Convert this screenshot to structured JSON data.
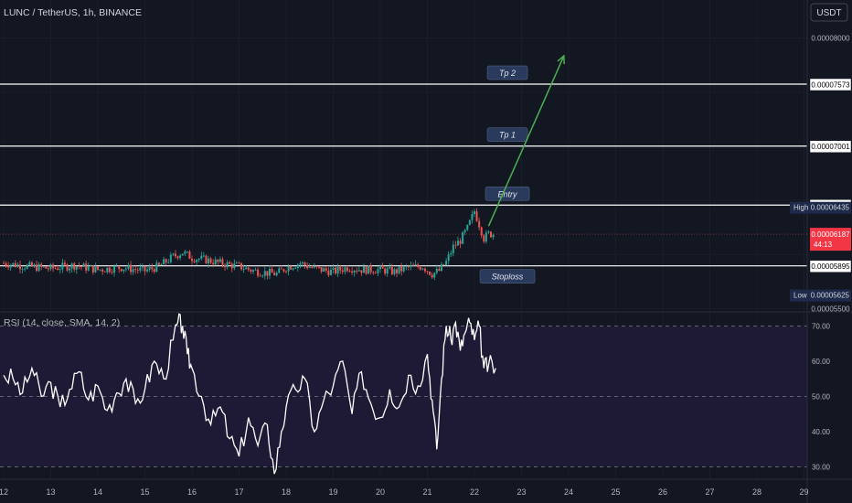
{
  "header": {
    "symbol_title": "LUNC / TetherUS, 1h, BINANCE",
    "currency": "USDT"
  },
  "chart_data": {
    "type": "candlestick",
    "price_axis": {
      "ylim": [
        5.47e-05,
        8.35e-05
      ],
      "scale_labels": [
        "0.00008000",
        "0.00005500"
      ],
      "scale_values": [
        8e-05,
        5.5e-05
      ]
    },
    "x_axis": {
      "tick_labels": [
        "12",
        "13",
        "14",
        "15",
        "16",
        "17",
        "18",
        "19",
        "20",
        "21",
        "22",
        "23",
        "24",
        "25",
        "26",
        "27",
        "28",
        "29"
      ]
    },
    "levels": [
      {
        "name": "Tp 2",
        "price": 7.573e-05,
        "label": "0.00007573",
        "annotation": "Tp 2"
      },
      {
        "name": "Tp 1",
        "price": 7.001e-05,
        "label": "0.00007001",
        "annotation": "Tp 1"
      },
      {
        "name": "Entry",
        "price": 6.456e-05,
        "label": "0.00006456",
        "annotation": "Entry"
      },
      {
        "name": "Stoploss",
        "price": 5.895e-05,
        "label": "0.00005895",
        "annotation": "Stoploss"
      }
    ],
    "markers": {
      "high_label": "High",
      "high_value": "0.00006435",
      "high_price": 6.435e-05,
      "low_label": "Low",
      "low_value": "0.00005625",
      "low_price": 5.625e-05,
      "last_price": "0.00006187",
      "last_price_value": 6.187e-05,
      "countdown": "44:13"
    },
    "price_series": {
      "x": [
        12.0,
        12.5,
        13.0,
        13.5,
        14.0,
        14.5,
        15.0,
        15.3,
        15.6,
        15.8,
        16.0,
        16.3,
        16.6,
        17.0,
        17.3,
        17.6,
        17.8,
        18.0,
        18.3,
        18.6,
        19.0,
        19.3,
        19.6,
        20.0,
        20.3,
        20.6,
        20.9,
        21.1,
        21.25,
        21.4,
        21.55,
        21.7,
        21.85,
        22.0,
        22.1,
        22.2,
        22.3,
        22.45
      ],
      "price": [
        5.92e-05,
        5.89e-05,
        5.87e-05,
        5.9e-05,
        5.86e-05,
        5.88e-05,
        5.85e-05,
        5.89e-05,
        5.98e-05,
        6.02e-05,
        5.97e-05,
        5.95e-05,
        5.92e-05,
        5.89e-05,
        5.85e-05,
        5.83e-05,
        5.82e-05,
        5.88e-05,
        5.92e-05,
        5.87e-05,
        5.84e-05,
        5.88e-05,
        5.86e-05,
        5.86e-05,
        5.84e-05,
        5.88e-05,
        5.89e-05,
        5.82e-05,
        5.85e-05,
        5.93e-05,
        6.07e-05,
        6.13e-05,
        6.24e-05,
        6.4e-05,
        6.28e-05,
        6.15e-05,
        6.19e-05,
        6.19e-05
      ]
    },
    "projection_arrow": {
      "from": [
        22.3,
        6.262e-05
      ],
      "to": [
        23.9,
        7.834e-05
      ]
    },
    "rsi": {
      "title": "RSI (14, close, SMA, 14, 2)",
      "ylim": [
        26.5,
        74
      ],
      "tick_labels": [
        "70.00",
        "60.00",
        "50.00",
        "40.00",
        "30.00"
      ],
      "tick_values": [
        70,
        60,
        50,
        40,
        30
      ],
      "x": [
        12.0,
        12.2,
        12.4,
        12.6,
        12.8,
        13.0,
        13.2,
        13.4,
        13.6,
        13.8,
        14.0,
        14.2,
        14.4,
        14.6,
        14.8,
        15.0,
        15.2,
        15.4,
        15.6,
        15.7,
        15.8,
        15.9,
        16.0,
        16.2,
        16.4,
        16.6,
        16.8,
        17.0,
        17.2,
        17.4,
        17.6,
        17.75,
        17.9,
        18.0,
        18.2,
        18.4,
        18.6,
        18.8,
        19.0,
        19.2,
        19.4,
        19.6,
        19.8,
        20.0,
        20.2,
        20.4,
        20.6,
        20.8,
        21.0,
        21.1,
        21.2,
        21.3,
        21.4,
        21.5,
        21.6,
        21.7,
        21.8,
        21.9,
        22.0,
        22.1,
        22.2,
        22.3,
        22.45
      ],
      "values": [
        56,
        55,
        51,
        58,
        50,
        54,
        47,
        52,
        57,
        49,
        53,
        46,
        51,
        55,
        48,
        52,
        60,
        55,
        66,
        71,
        70,
        62,
        58,
        50,
        42,
        47,
        38,
        33,
        44,
        36,
        42,
        28,
        40,
        47,
        52,
        55,
        40,
        49,
        53,
        60,
        45,
        57,
        48,
        44,
        52,
        47,
        56,
        53,
        62,
        49,
        35,
        55,
        70,
        66,
        71,
        63,
        68,
        71,
        66,
        70,
        58,
        59,
        58
      ]
    }
  }
}
